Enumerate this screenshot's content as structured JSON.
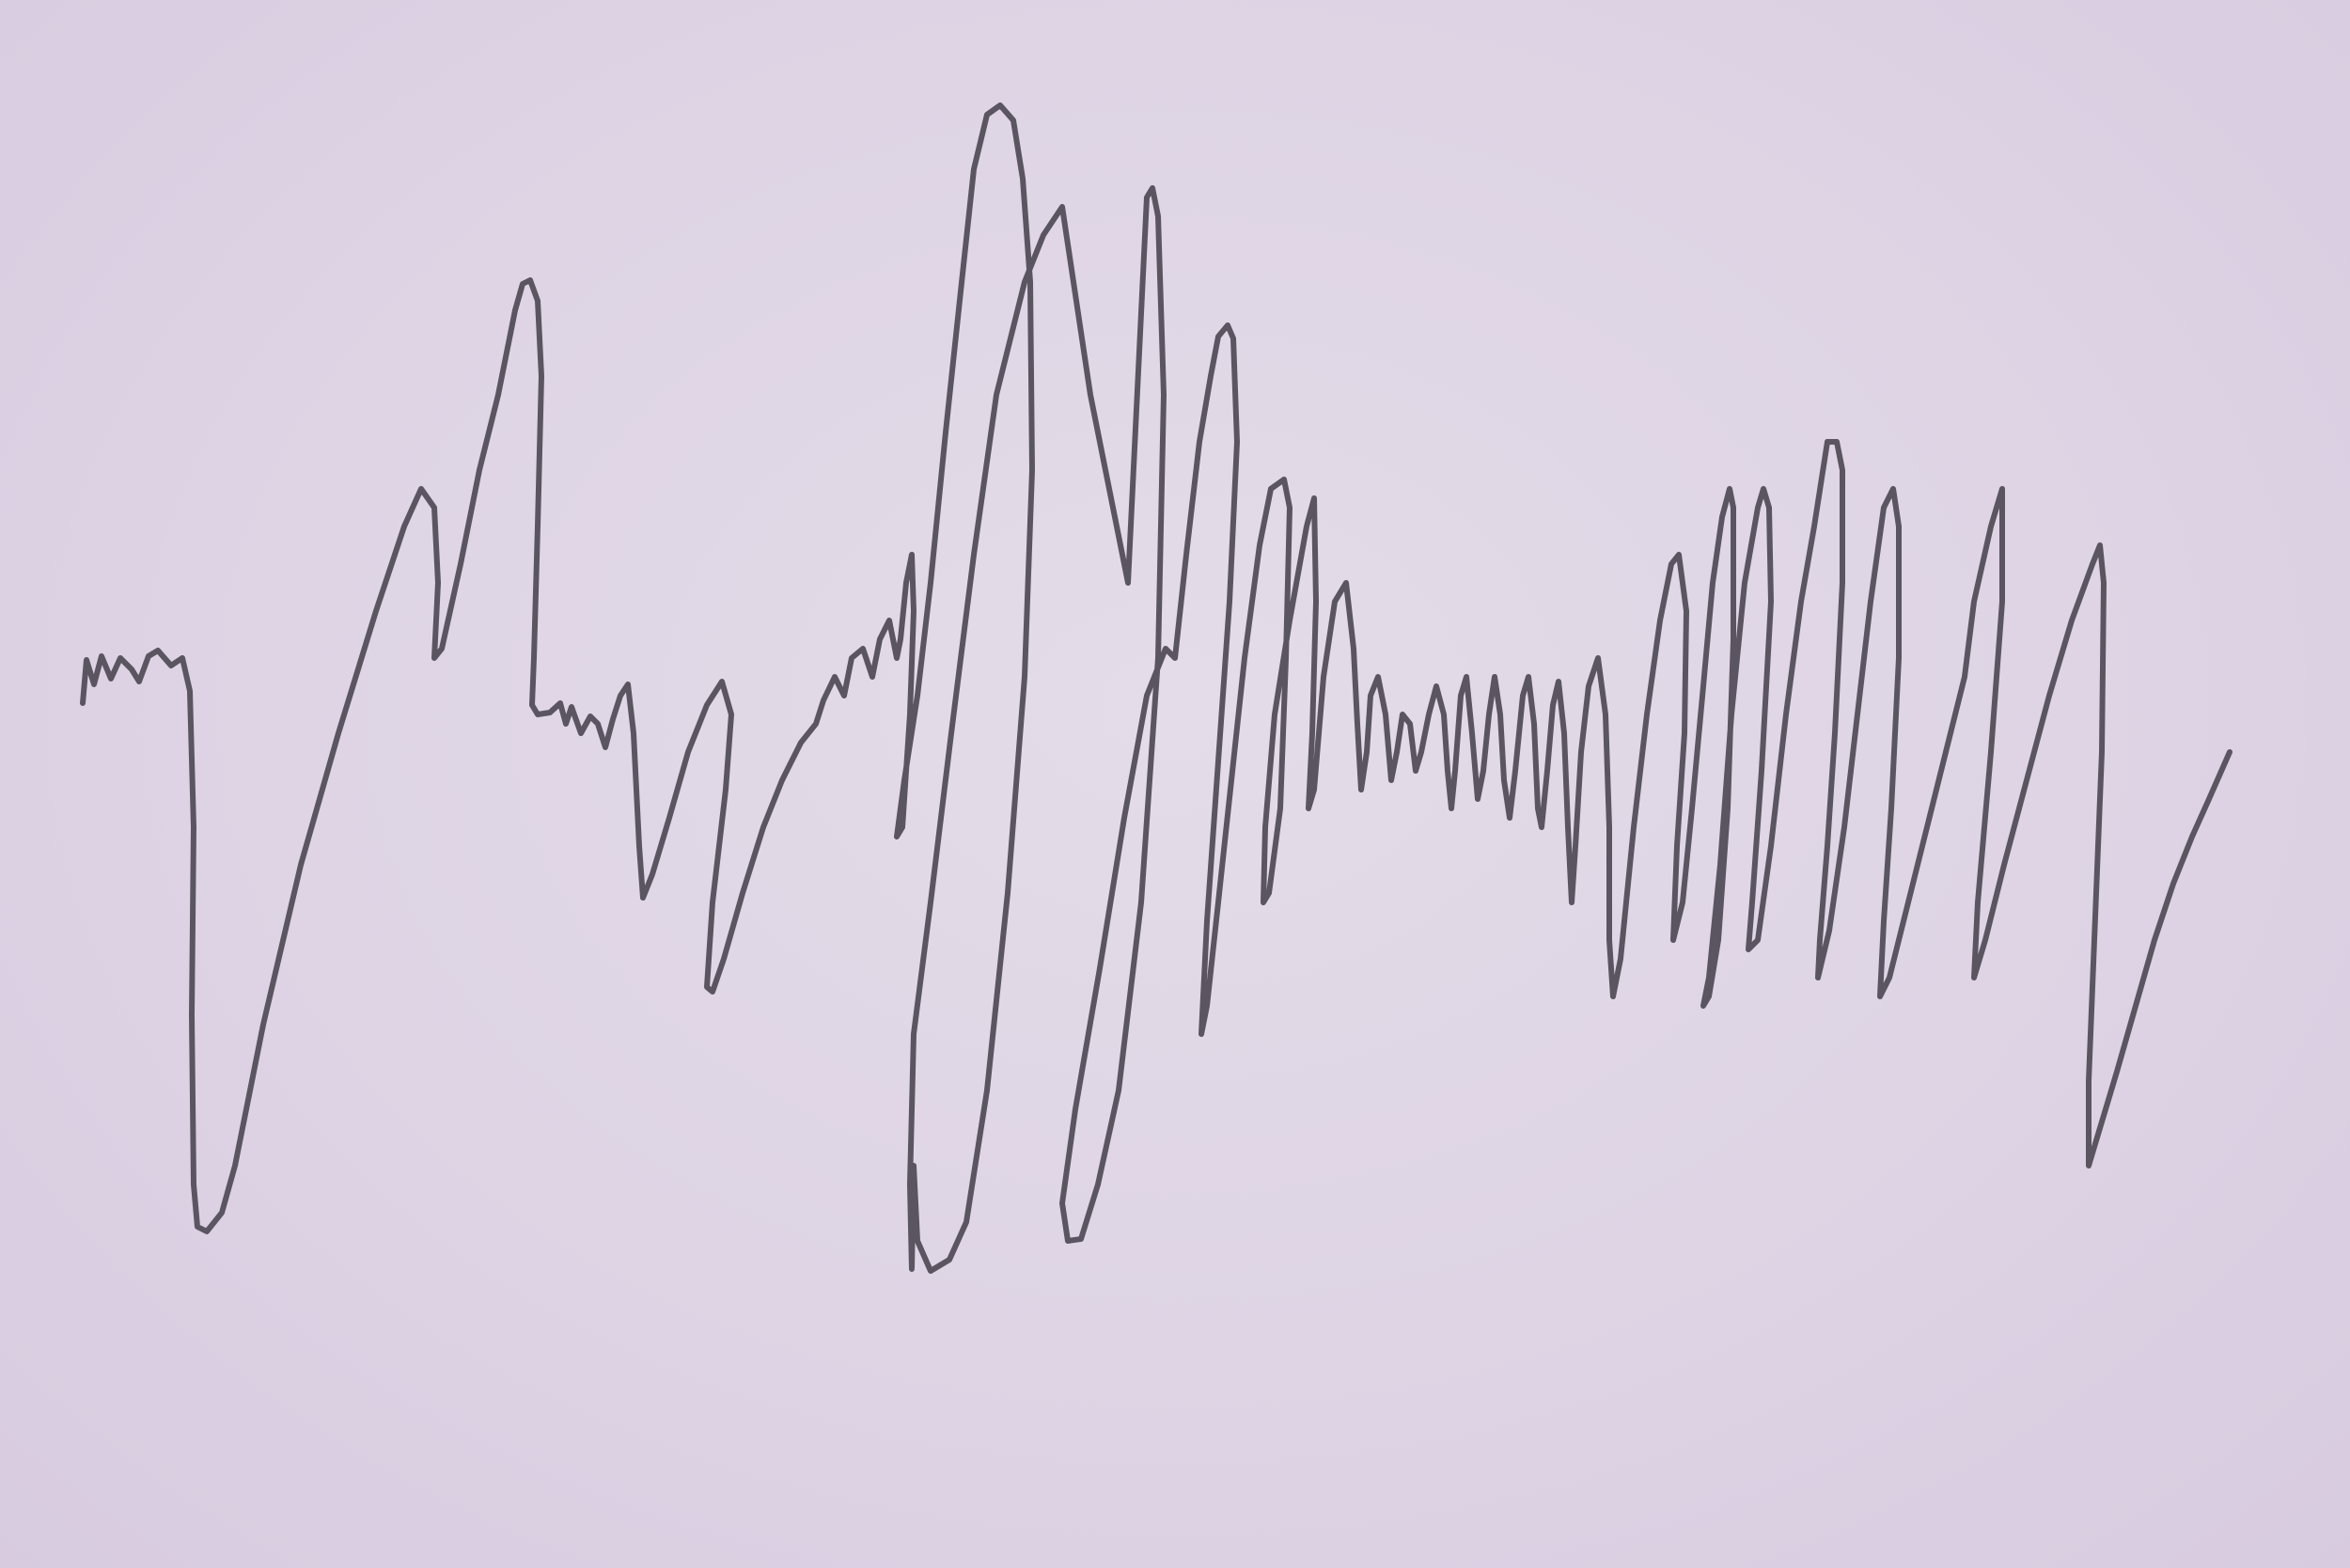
{
  "scene": {
    "background_color": "#ddd3e6",
    "ink_color": "#5a5560",
    "subject": "waveform-trace"
  }
}
